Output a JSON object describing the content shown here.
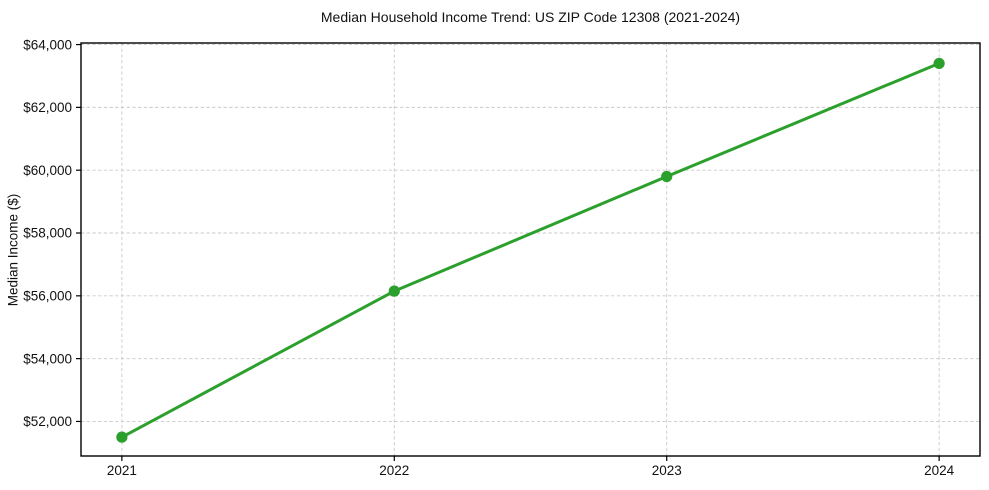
{
  "figure": {
    "title": "Median Household Income Trend: US ZIP Code 12308 (2021-2024)",
    "ylabel": "Median Income ($)"
  },
  "chart_data": {
    "type": "line",
    "title": "Median Household Income Trend: US ZIP Code 12308 (2021-2024)",
    "xlabel": "",
    "ylabel": "Median Income ($)",
    "x": [
      2021,
      2022,
      2023,
      2024
    ],
    "series": [
      {
        "name": "Median household income",
        "values": [
          51500,
          56150,
          59800,
          63400
        ]
      }
    ],
    "xticks": [
      {
        "value": 2021,
        "label": "2021"
      },
      {
        "value": 2022,
        "label": "2022"
      },
      {
        "value": 2023,
        "label": "2023"
      },
      {
        "value": 2024,
        "label": "2024"
      }
    ],
    "yticks": [
      {
        "value": 52000,
        "label": "$52,000"
      },
      {
        "value": 54000,
        "label": "$54,000"
      },
      {
        "value": 56000,
        "label": "$56,000"
      },
      {
        "value": 58000,
        "label": "$58,000"
      },
      {
        "value": 60000,
        "label": "$60,000"
      },
      {
        "value": 62000,
        "label": "$62,000"
      },
      {
        "value": 64000,
        "label": "$64,000"
      }
    ],
    "xlim": [
      2020.85,
      2024.15
    ],
    "ylim": [
      50900,
      64050
    ],
    "grid": true,
    "grid_style": "dashed",
    "legend": "none",
    "line_color": "#2ca02c",
    "marker_color": "#2ca02c",
    "grid_color": "#c9c9c9",
    "spine_color": "#000000",
    "text_color": "#111111",
    "background_color": "#ffffff"
  }
}
